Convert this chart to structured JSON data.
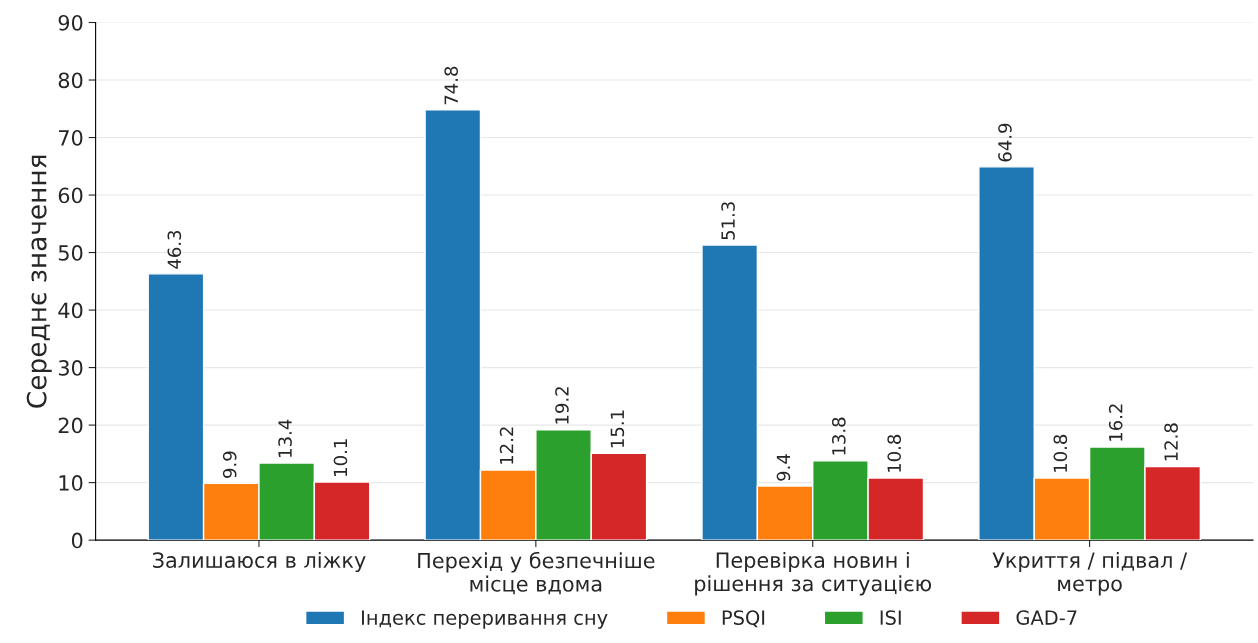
{
  "chart_data": {
    "type": "bar",
    "ylabel": "Середнє значення",
    "categories": [
      "Залишаюся в ліжку",
      "Перехід у безпечніше\nмісце вдома",
      "Перевірка новин і\nрішення за ситуацією",
      "Укриття / підвал /\nметро"
    ],
    "series": [
      {
        "name": "Індекс переривання сну",
        "color": "#1f77b4",
        "values": [
          46.3,
          74.8,
          51.3,
          64.9
        ]
      },
      {
        "name": "PSQI",
        "color": "#ff7f0e",
        "values": [
          9.9,
          12.2,
          9.4,
          10.8
        ]
      },
      {
        "name": "ISI",
        "color": "#2ca02c",
        "values": [
          13.4,
          19.2,
          13.8,
          16.2
        ]
      },
      {
        "name": "GAD-7",
        "color": "#d62728",
        "values": [
          10.1,
          15.1,
          10.8,
          12.8
        ]
      }
    ],
    "ylim": [
      0,
      90
    ],
    "yticks": [
      0,
      10,
      20,
      30,
      40,
      50,
      60,
      70,
      80,
      90
    ],
    "grid": "y",
    "legend": "bottom",
    "data_labels": true
  }
}
